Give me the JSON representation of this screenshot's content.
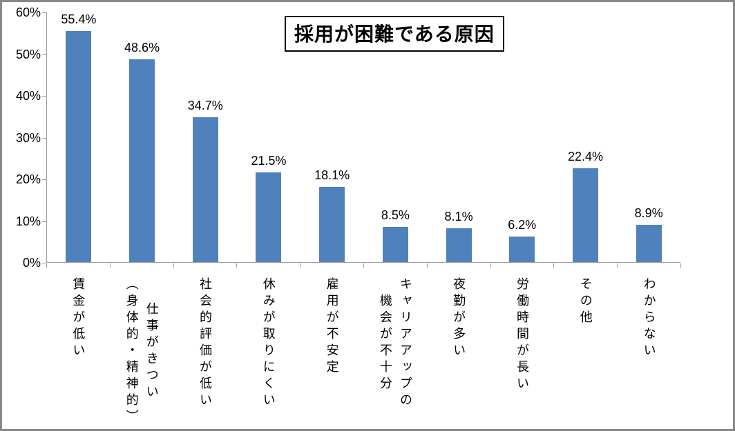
{
  "chart_data": {
    "type": "bar",
    "title": "採用が困難である原因",
    "categories": [
      "賃金が低い",
      "仕事がきつい\n（身体的・精神的）",
      "社会的評価が低い",
      "休みが取りにくい",
      "雇用が不安定",
      "キャリアアップの\n機会が不十分",
      "夜勤が多い",
      "労働時間が長い",
      "その他",
      "わからない"
    ],
    "values": [
      55.4,
      48.6,
      34.7,
      21.5,
      18.1,
      8.5,
      8.1,
      6.2,
      22.4,
      8.9
    ],
    "value_labels": [
      "55.4%",
      "48.6%",
      "34.7%",
      "21.5%",
      "18.1%",
      "8.5%",
      "8.1%",
      "6.2%",
      "22.4%",
      "8.9%"
    ],
    "xlabel": "",
    "ylabel": "",
    "ylim": [
      0,
      60
    ],
    "y_tick_step": 10,
    "y_tick_labels": [
      "0%",
      "10%",
      "20%",
      "30%",
      "40%",
      "50%",
      "60%"
    ],
    "grid": false,
    "legend_position": "none",
    "bar_color": "#4f81bd",
    "axis_color": "#9c9c9c",
    "title_border_color": "#000000",
    "text_color": "#000000",
    "background_color": "#ffffff"
  }
}
